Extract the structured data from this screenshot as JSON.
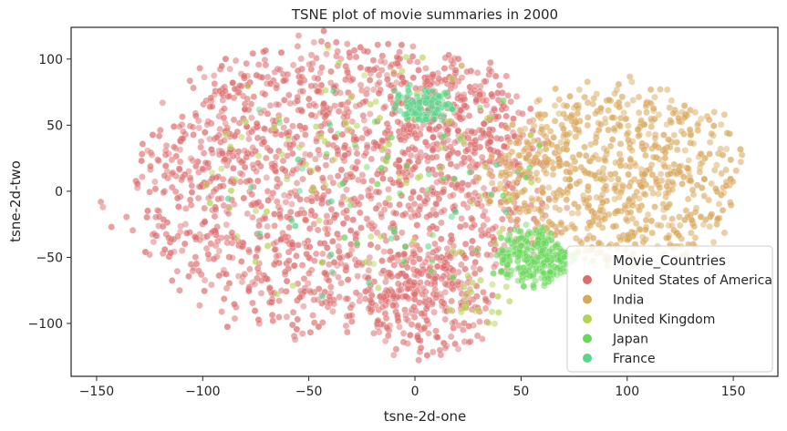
{
  "chart_data": {
    "type": "scatter",
    "title": "TSNE plot of movie summaries in 2000",
    "xlabel": "tsne-2d-one",
    "ylabel": "tsne-2d-two",
    "xlim": [
      -162,
      171
    ],
    "ylim": [
      -140,
      124
    ],
    "xticks": [
      -150,
      -100,
      -50,
      0,
      50,
      100,
      150
    ],
    "yticks": [
      -100,
      -50,
      0,
      50,
      100
    ],
    "grid": false,
    "legend": {
      "title": "Movie_Countries",
      "placement": "lower-right"
    },
    "series": [
      {
        "name": "United States of America",
        "color": "#dd6c6c",
        "clusters": [
          {
            "cx": -35,
            "cy": 5,
            "rx": 95,
            "ry": 110,
            "n": 1600
          },
          {
            "cx": 5,
            "cy": -85,
            "rx": 30,
            "ry": 40,
            "n": 200
          },
          {
            "cx": 20,
            "cy": 60,
            "rx": 35,
            "ry": 40,
            "n": 150
          }
        ],
        "outliers": [
          [
            -148,
            -8
          ],
          [
            -147,
            -12
          ],
          [
            -143,
            -27
          ],
          [
            -127,
            -46
          ],
          [
            -125,
            -48
          ]
        ]
      },
      {
        "name": "India",
        "color": "#d9a75a",
        "clusters": [
          {
            "cx": 95,
            "cy": 10,
            "rx": 60,
            "ry": 70,
            "n": 750
          }
        ],
        "outliers": [
          [
            22,
            95
          ],
          [
            -10,
            90
          ],
          [
            30,
            10
          ]
        ]
      },
      {
        "name": "United Kingdom",
        "color": "#b3d451",
        "clusters": [
          {
            "cx": -20,
            "cy": 10,
            "rx": 80,
            "ry": 100,
            "n": 90
          },
          {
            "cx": 30,
            "cy": -80,
            "rx": 15,
            "ry": 25,
            "n": 20
          }
        ],
        "outliers": []
      },
      {
        "name": "Japan",
        "color": "#68d85a",
        "clusters": [
          {
            "cx": 55,
            "cy": -50,
            "rx": 18,
            "ry": 22,
            "n": 230
          },
          {
            "cx": 10,
            "cy": 0,
            "rx": 60,
            "ry": 80,
            "n": 40
          }
        ],
        "outliers": []
      },
      {
        "name": "France",
        "color": "#58d68a",
        "clusters": [
          {
            "cx": 5,
            "cy": 65,
            "rx": 15,
            "ry": 12,
            "n": 110
          },
          {
            "cx": -20,
            "cy": 0,
            "rx": 70,
            "ry": 90,
            "n": 30
          }
        ],
        "outliers": []
      }
    ]
  }
}
